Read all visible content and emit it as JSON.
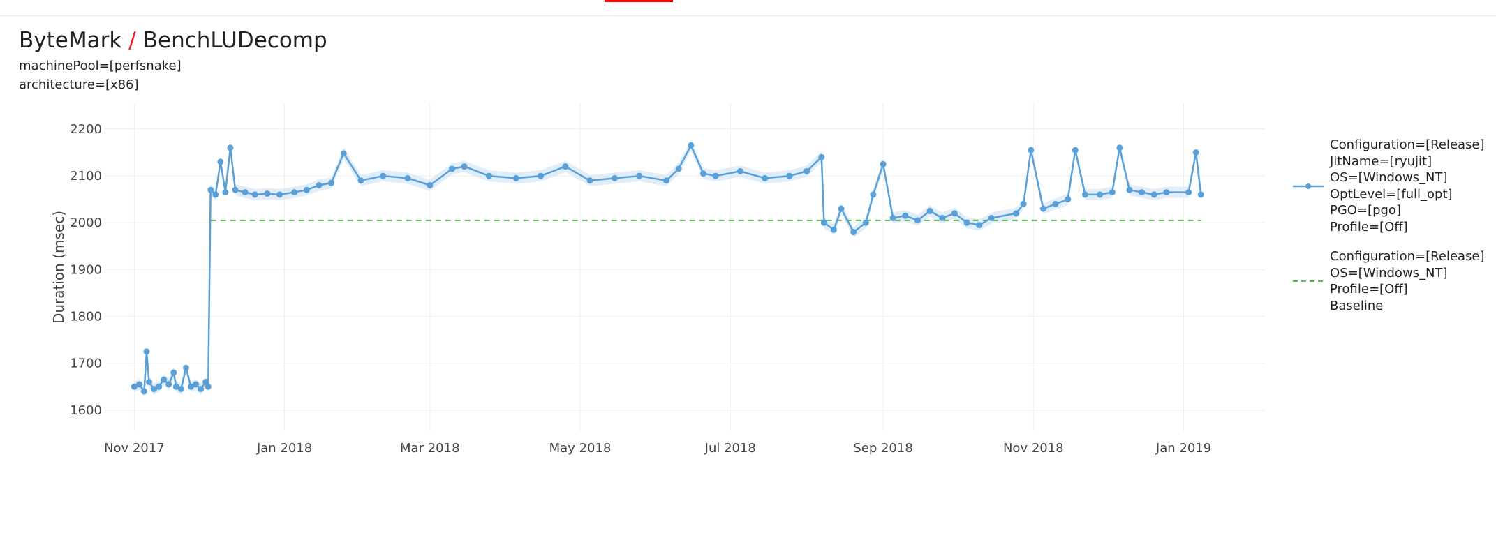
{
  "header": {
    "benchmark_group": "ByteMark",
    "separator": "/",
    "benchmark_name": "BenchLUDecomp",
    "filters": [
      "machinePool=[perfsnake]",
      "architecture=[x86]"
    ]
  },
  "colors": {
    "series": "#5aa0d8",
    "band": "#d9e8f6",
    "baseline": "#55b949",
    "accent": "#ff0000",
    "grid": "#eeeeee"
  },
  "legend": {
    "items": [
      {
        "lines": [
          "Configuration=[Release]",
          "JitName=[ryujit]",
          "OS=[Windows_NT]",
          "OptLevel=[full_opt]",
          "PGO=[pgo]",
          "Profile=[Off]"
        ],
        "style": "line-markers"
      },
      {
        "lines": [
          "Configuration=[Release]",
          "OS=[Windows_NT]",
          "Profile=[Off]",
          "Baseline"
        ],
        "style": "dashed"
      }
    ]
  },
  "chart_data": {
    "type": "line",
    "title": "",
    "xlabel": "",
    "ylabel": "Duration (msec)",
    "x_ticks": [
      "Nov 2017",
      "Jan 2018",
      "Mar 2018",
      "May 2018",
      "Jul 2018",
      "Sep 2018",
      "Nov 2018",
      "Jan 2019"
    ],
    "y_ticks": [
      1600,
      1700,
      1800,
      1900,
      2000,
      2100,
      2200
    ],
    "ylim": [
      1555,
      2255
    ],
    "xlim": [
      "2017-10-20",
      "2019-02-03"
    ],
    "grid": true,
    "legend_position": "right",
    "series": [
      {
        "name": "Configuration=[Release] JitName=[ryujit] OS=[Windows_NT] OptLevel=[full_opt] PGO=[pgo] Profile=[Off]",
        "style": "line+markers",
        "band": "min-max range",
        "points": [
          [
            "2017-11-01",
            1650
          ],
          [
            "2017-11-03",
            1655
          ],
          [
            "2017-11-05",
            1640
          ],
          [
            "2017-11-06",
            1725
          ],
          [
            "2017-11-07",
            1660
          ],
          [
            "2017-11-09",
            1645
          ],
          [
            "2017-11-11",
            1650
          ],
          [
            "2017-11-13",
            1665
          ],
          [
            "2017-11-15",
            1655
          ],
          [
            "2017-11-17",
            1680
          ],
          [
            "2017-11-18",
            1650
          ],
          [
            "2017-11-20",
            1645
          ],
          [
            "2017-11-22",
            1690
          ],
          [
            "2017-11-24",
            1650
          ],
          [
            "2017-11-26",
            1655
          ],
          [
            "2017-11-28",
            1645
          ],
          [
            "2017-11-30",
            1660
          ],
          [
            "2017-12-01",
            1650
          ],
          [
            "2017-12-02",
            2070
          ],
          [
            "2017-12-04",
            2060
          ],
          [
            "2017-12-06",
            2130
          ],
          [
            "2017-12-08",
            2065
          ],
          [
            "2017-12-10",
            2160
          ],
          [
            "2017-12-12",
            2070
          ],
          [
            "2017-12-16",
            2065
          ],
          [
            "2017-12-20",
            2060
          ],
          [
            "2017-12-25",
            2062
          ],
          [
            "2017-12-30",
            2060
          ],
          [
            "2018-01-05",
            2065
          ],
          [
            "2018-01-10",
            2070
          ],
          [
            "2018-01-15",
            2080
          ],
          [
            "2018-01-20",
            2085
          ],
          [
            "2018-01-25",
            2148
          ],
          [
            "2018-02-01",
            2090
          ],
          [
            "2018-02-10",
            2100
          ],
          [
            "2018-02-20",
            2095
          ],
          [
            "2018-03-01",
            2080
          ],
          [
            "2018-03-10",
            2115
          ],
          [
            "2018-03-15",
            2120
          ],
          [
            "2018-03-25",
            2100
          ],
          [
            "2018-04-05",
            2095
          ],
          [
            "2018-04-15",
            2100
          ],
          [
            "2018-04-25",
            2120
          ],
          [
            "2018-05-05",
            2090
          ],
          [
            "2018-05-15",
            2095
          ],
          [
            "2018-05-25",
            2100
          ],
          [
            "2018-06-05",
            2090
          ],
          [
            "2018-06-10",
            2115
          ],
          [
            "2018-06-15",
            2165
          ],
          [
            "2018-06-20",
            2105
          ],
          [
            "2018-06-25",
            2100
          ],
          [
            "2018-07-05",
            2110
          ],
          [
            "2018-07-15",
            2095
          ],
          [
            "2018-07-25",
            2100
          ],
          [
            "2018-08-01",
            2110
          ],
          [
            "2018-08-07",
            2140
          ],
          [
            "2018-08-08",
            2000
          ],
          [
            "2018-08-12",
            1985
          ],
          [
            "2018-08-15",
            2030
          ],
          [
            "2018-08-20",
            1980
          ],
          [
            "2018-08-25",
            2000
          ],
          [
            "2018-08-28",
            2060
          ],
          [
            "2018-09-01",
            2125
          ],
          [
            "2018-09-05",
            2010
          ],
          [
            "2018-09-10",
            2015
          ],
          [
            "2018-09-15",
            2005
          ],
          [
            "2018-09-20",
            2025
          ],
          [
            "2018-09-25",
            2010
          ],
          [
            "2018-09-30",
            2020
          ],
          [
            "2018-10-05",
            2000
          ],
          [
            "2018-10-10",
            1995
          ],
          [
            "2018-10-15",
            2010
          ],
          [
            "2018-10-25",
            2020
          ],
          [
            "2018-10-28",
            2040
          ],
          [
            "2018-10-31",
            2155
          ],
          [
            "2018-11-05",
            2030
          ],
          [
            "2018-11-10",
            2040
          ],
          [
            "2018-11-15",
            2050
          ],
          [
            "2018-11-18",
            2155
          ],
          [
            "2018-11-22",
            2060
          ],
          [
            "2018-11-28",
            2060
          ],
          [
            "2018-12-03",
            2065
          ],
          [
            "2018-12-06",
            2160
          ],
          [
            "2018-12-10",
            2070
          ],
          [
            "2018-12-15",
            2065
          ],
          [
            "2018-12-20",
            2060
          ],
          [
            "2018-12-25",
            2065
          ],
          [
            "2019-01-03",
            2065
          ],
          [
            "2019-01-06",
            2150
          ],
          [
            "2019-01-08",
            2060
          ]
        ]
      },
      {
        "name": "Configuration=[Release] OS=[Windows_NT] Profile=[Off] Baseline",
        "style": "dashed",
        "points": [
          [
            "2017-12-02",
            2005
          ],
          [
            "2019-01-08",
            2005
          ]
        ]
      }
    ]
  }
}
